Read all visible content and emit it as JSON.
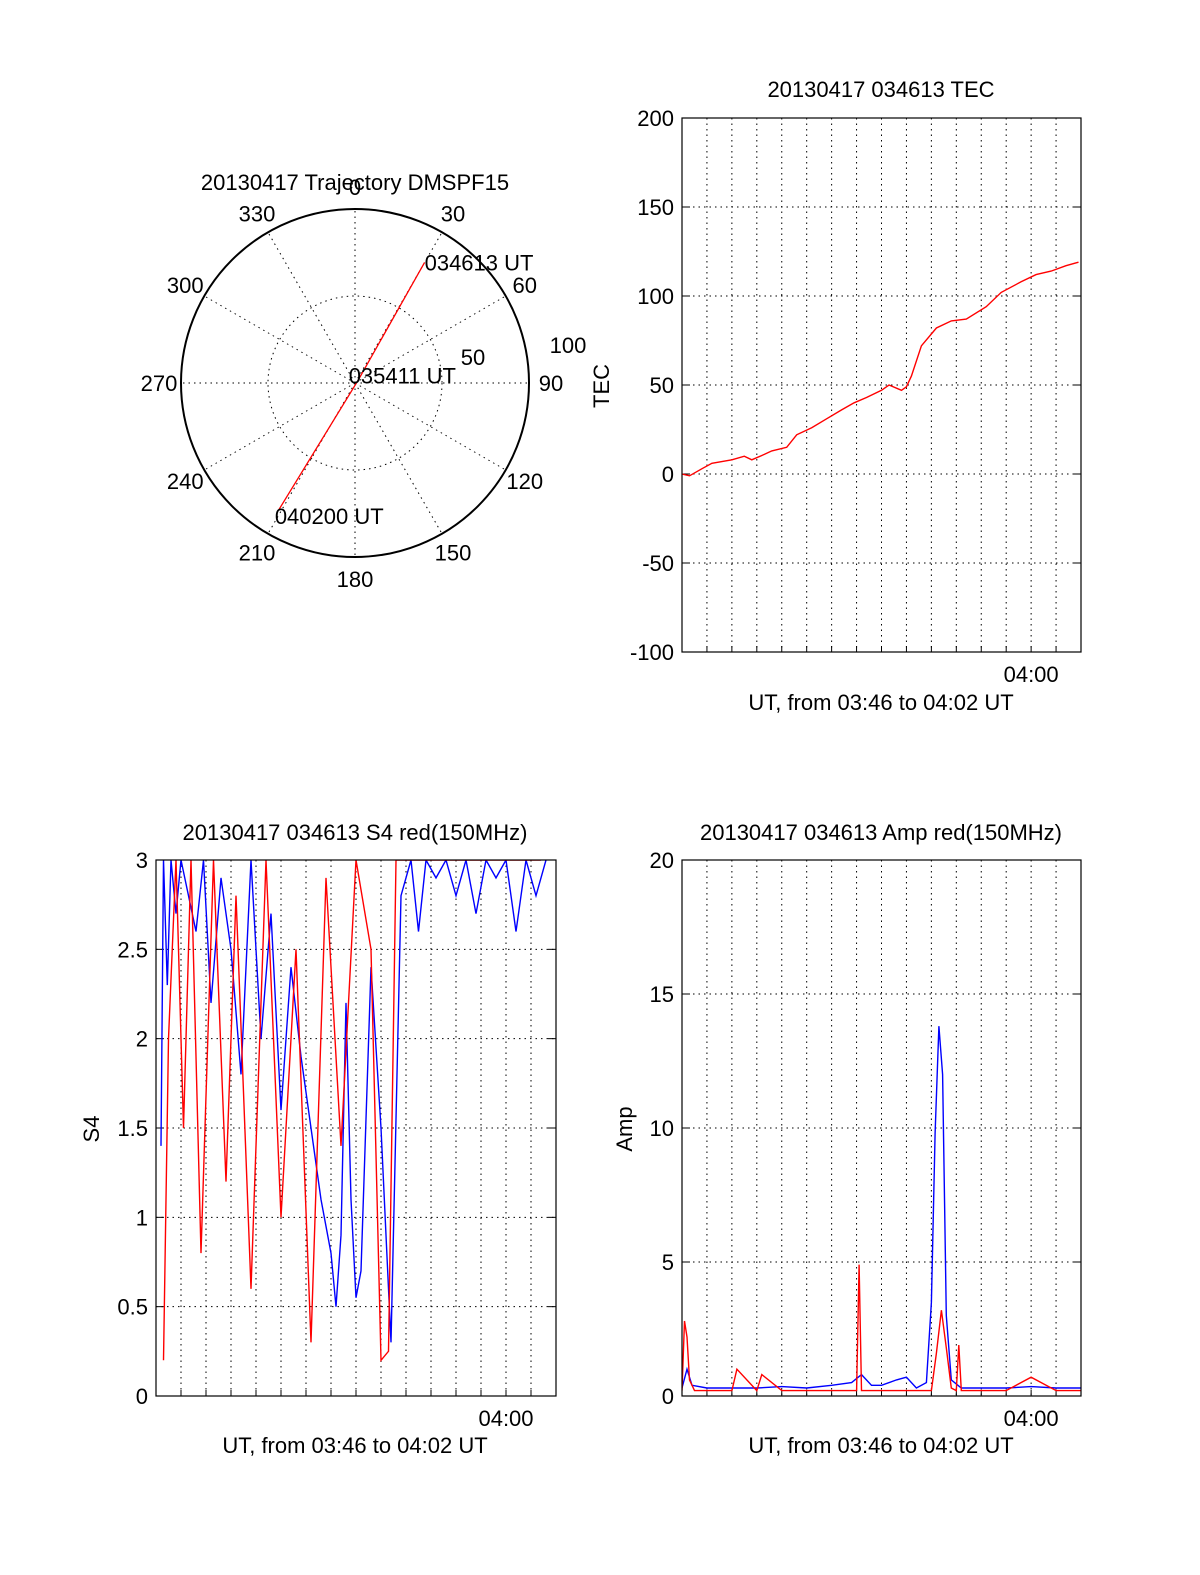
{
  "colors": {
    "red": "#ff0000",
    "blue": "#0000ff",
    "axis": "#000000"
  },
  "chart_data": [
    {
      "type": "polar",
      "title": "20130417 Trajectory DMSPF15",
      "azimuth_labels": [
        "0",
        "30",
        "60",
        "90",
        "120",
        "150",
        "180",
        "210",
        "240",
        "270",
        "300",
        "330"
      ],
      "radial_labels": [
        "50",
        "100"
      ],
      "rlim": [
        0,
        100
      ],
      "trajectory": {
        "color": "#ff0000",
        "points": [
          {
            "label": "034613 UT",
            "azimuth": 30,
            "r": 80
          },
          {
            "label": "035411 UT",
            "azimuth": 45,
            "r": 3
          },
          {
            "label": "040200 UT",
            "azimuth": 211,
            "r": 85
          }
        ]
      }
    },
    {
      "type": "line",
      "title": "20130417 034613 TEC",
      "ylabel": "TEC",
      "xlabel": "UT, from 03:46 to 04:02 UT",
      "xlim": [
        0,
        16
      ],
      "ylim": [
        -100,
        200
      ],
      "yticks": [
        "200",
        "150",
        "100",
        "50",
        "0",
        "-50",
        "-100"
      ],
      "xtick_labels": [
        {
          "x": 14,
          "label": "04:00"
        }
      ],
      "grid": true,
      "series": [
        {
          "color": "#ff0000",
          "x": [
            0,
            0.3,
            0.8,
            1.2,
            2,
            2.5,
            2.8,
            3.3,
            3.6,
            4.2,
            4.6,
            5.2,
            5.8,
            6.4,
            6.9,
            7.4,
            8,
            8.3,
            8.8,
            9.0,
            9.2,
            9.6,
            10.2,
            10.8,
            11.4,
            12.2,
            12.8,
            13.6,
            14.2,
            14.8,
            15.4,
            15.9
          ],
          "y": [
            0,
            -1,
            3,
            6,
            8,
            10,
            8,
            11,
            13,
            15,
            22,
            26,
            31,
            36,
            40,
            43,
            47,
            50,
            47,
            49,
            55,
            72,
            82,
            86,
            87,
            94,
            102,
            108,
            112,
            114,
            117,
            119
          ]
        }
      ]
    },
    {
      "type": "line",
      "title": "20130417 034613 S4 red(150MHz)",
      "ylabel": "S4",
      "xlabel": "UT, from 03:46 to 04:02 UT",
      "xlim": [
        0,
        16
      ],
      "ylim": [
        0,
        3
      ],
      "yticks": [
        "3",
        "2.5",
        "2",
        "1.5",
        "1",
        "0.5",
        "0"
      ],
      "xtick_labels": [
        {
          "x": 14,
          "label": "04:00"
        }
      ],
      "grid": true,
      "series": [
        {
          "color": "#0000ff",
          "name_visible": false,
          "x": [
            0.2,
            0.3,
            0.45,
            0.6,
            0.8,
            1.0,
            1.3,
            1.6,
            1.9,
            2.2,
            2.6,
            3.0,
            3.4,
            3.8,
            4.2,
            4.6,
            5.0,
            5.4,
            5.8,
            6.2,
            6.6,
            7.0,
            7.2,
            7.4,
            7.6,
            7.8,
            8.0,
            8.2,
            8.6,
            9.0,
            9.4,
            9.8,
            10.2,
            10.5,
            10.8,
            11.2,
            11.6,
            12.0,
            12.4,
            12.8,
            13.2,
            13.6,
            14.0,
            14.4,
            14.8,
            15.2,
            15.6
          ],
          "y": [
            1.4,
            3.0,
            2.3,
            3.0,
            2.7,
            3.0,
            2.8,
            2.6,
            3.0,
            2.2,
            2.9,
            2.5,
            1.8,
            3.0,
            2.0,
            2.7,
            1.6,
            2.4,
            1.9,
            1.5,
            1.1,
            0.8,
            0.5,
            0.9,
            2.2,
            1.1,
            0.55,
            0.7,
            2.4,
            1.5,
            0.3,
            2.8,
            3.0,
            2.6,
            3.0,
            2.9,
            3.0,
            2.8,
            3.0,
            2.7,
            3.0,
            2.9,
            3.0,
            2.6,
            3.0,
            2.8,
            3.0
          ]
        },
        {
          "color": "#ff0000",
          "name_visible": false,
          "x": [
            0.3,
            0.5,
            0.8,
            1.1,
            1.4,
            1.8,
            2.3,
            2.8,
            3.2,
            3.8,
            4.4,
            5.0,
            5.6,
            6.2,
            6.8,
            7.4,
            8.0,
            8.6,
            9.0,
            9.3,
            9.6,
            10.0,
            10.6,
            11.2,
            11.8,
            12.4,
            13.0,
            13.6,
            14.2,
            14.8,
            15.4
          ],
          "y": [
            0.2,
            2.0,
            3.0,
            1.5,
            3.0,
            0.8,
            3.0,
            1.2,
            2.8,
            0.6,
            3.0,
            1.0,
            2.5,
            0.3,
            2.9,
            1.4,
            3.0,
            2.5,
            0.2,
            0.25,
            3.0,
            3.0,
            3.0,
            3.0,
            3.0,
            3.0,
            3.0,
            3.0,
            3.0,
            3.0,
            3.0
          ]
        }
      ]
    },
    {
      "type": "line",
      "title": "20130417 034613 Amp red(150MHz)",
      "ylabel": "Amp",
      "xlabel": "UT, from 03:46 to 04:02 UT",
      "xlim": [
        0,
        16
      ],
      "ylim": [
        0,
        20
      ],
      "yticks": [
        "20",
        "15",
        "10",
        "5",
        "0"
      ],
      "xtick_labels": [
        {
          "x": 14,
          "label": "04:00"
        }
      ],
      "grid": true,
      "series": [
        {
          "color": "#0000ff",
          "x": [
            0,
            0.2,
            0.4,
            1,
            2,
            3,
            4,
            5,
            6,
            6.8,
            7.2,
            7.6,
            8,
            8.6,
            9,
            9.4,
            9.8,
            10,
            10.15,
            10.3,
            10.45,
            10.6,
            10.8,
            11.2,
            12,
            13,
            14,
            15,
            16
          ],
          "y": [
            0.3,
            1.0,
            0.4,
            0.3,
            0.3,
            0.3,
            0.35,
            0.3,
            0.4,
            0.5,
            0.8,
            0.4,
            0.4,
            0.6,
            0.7,
            0.3,
            0.5,
            3.5,
            9.8,
            13.8,
            12.0,
            3.0,
            0.6,
            0.3,
            0.3,
            0.3,
            0.35,
            0.3,
            0.3
          ]
        },
        {
          "color": "#ff0000",
          "x": [
            0,
            0.1,
            0.2,
            0.3,
            0.5,
            1,
            2,
            2.2,
            3,
            3.2,
            4,
            5,
            7,
            7.1,
            7.2,
            8,
            9,
            10,
            10.2,
            10.4,
            10.6,
            10.8,
            11,
            11.1,
            11.2,
            12,
            13,
            14,
            15,
            16
          ],
          "y": [
            0.2,
            2.8,
            2.2,
            0.6,
            0.2,
            0.2,
            0.2,
            1.0,
            0.2,
            0.8,
            0.2,
            0.2,
            0.2,
            4.9,
            0.2,
            0.2,
            0.2,
            0.2,
            1.6,
            3.2,
            1.8,
            0.3,
            0.2,
            1.9,
            0.2,
            0.2,
            0.2,
            0.7,
            0.2,
            0.2
          ]
        }
      ]
    }
  ]
}
